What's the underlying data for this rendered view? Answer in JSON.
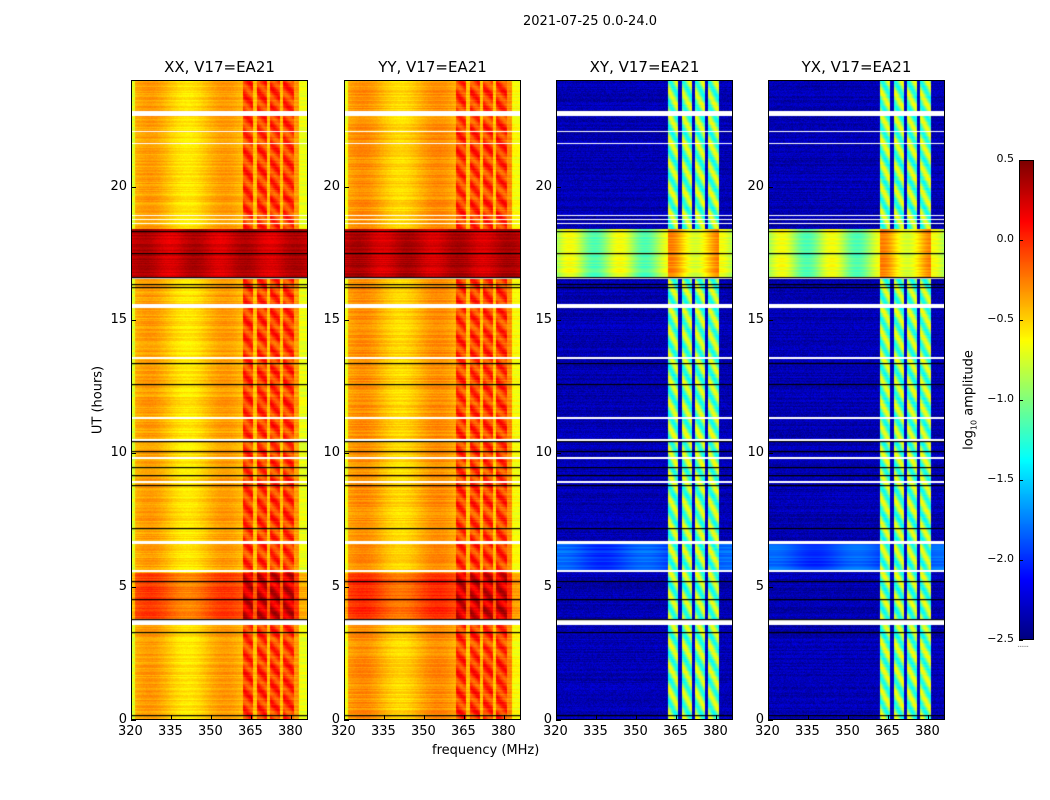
{
  "chart_data": {
    "type": "heatmap",
    "title": "2021-07-25 0.0-24.0",
    "xlabel": "frequency (MHz)",
    "ylabel": "UT (hours)",
    "xlim": [
      320,
      386.4
    ],
    "ylim": [
      0,
      24
    ],
    "xticks": [
      320,
      335,
      350,
      365,
      380
    ],
    "yticks": [
      0,
      5,
      10,
      15,
      20
    ],
    "panels": [
      {
        "title": "XX, V17=EA21",
        "kind": "parallel"
      },
      {
        "title": "YY, V17=EA21",
        "kind": "parallel"
      },
      {
        "title": "XY, V17=EA21",
        "kind": "cross"
      },
      {
        "title": "YX, V17=EA21",
        "kind": "cross"
      }
    ],
    "rfi_band_mhz": [
      362,
      381
    ],
    "rfi_gaps_mhz": [
      366.5,
      371.5,
      376.5
    ],
    "high_amplitude_hours": [
      16.6,
      18.4
    ],
    "elevated_hours": [
      3.8,
      5.5
    ],
    "flagged_hours": [
      [
        3.55,
        3.75
      ],
      [
        5.55,
        5.62
      ],
      [
        6.6,
        6.7
      ],
      [
        8.9,
        8.95
      ],
      [
        9.8,
        9.85
      ],
      [
        10.45,
        10.55
      ],
      [
        11.3,
        11.35
      ],
      [
        13.55,
        13.6
      ],
      [
        15.45,
        15.6
      ],
      [
        16.55,
        16.6
      ],
      [
        18.6,
        18.65
      ],
      [
        18.75,
        18.8
      ],
      [
        18.9,
        18.95
      ],
      [
        21.6,
        21.65
      ],
      [
        22.05,
        22.1
      ],
      [
        22.65,
        22.85
      ]
    ],
    "scan_boundaries_hours": [
      0.2,
      3.3,
      3.8,
      4.55,
      5.2,
      7.2,
      8.8,
      9.2,
      9.5,
      10.1,
      10.45,
      12.6,
      13.4,
      16.25,
      16.35,
      16.6,
      17.5,
      18.35
    ],
    "colorbar": {
      "label_prefix": "log",
      "label_sub": "10",
      "label_suffix": " amplitude",
      "range": [
        -2.5,
        0.5
      ],
      "colormap": "jet",
      "ticks": [
        0.5,
        0.0,
        -0.5,
        -1.0,
        -1.5,
        -2.0,
        -2.5
      ],
      "tick_labels": [
        "0.5",
        "0.0",
        "−0.5",
        "−1.0",
        "−1.5",
        "−2.0",
        "−2.5"
      ],
      "footer": "......"
    }
  }
}
